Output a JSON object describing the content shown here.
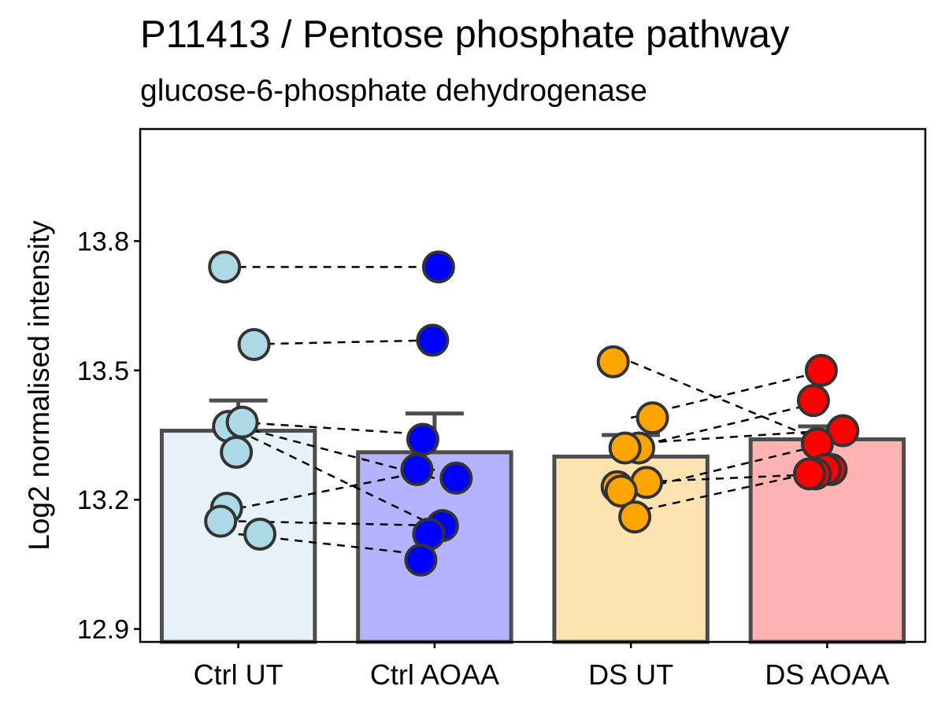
{
  "chart_data": {
    "type": "bar",
    "title": "P11413 / Pentose phosphate pathway",
    "subtitle": "glucose-6-phosphate dehydrogenase",
    "xlabel": "",
    "ylabel": "Log2 normalised intensity",
    "ylim": [
      12.87,
      14.06
    ],
    "yticks": [
      12.9,
      13.2,
      13.5,
      13.8
    ],
    "ytick_labels": [
      "12.9",
      "13.2",
      "13.5",
      "13.8"
    ],
    "grid": false,
    "legend": "none",
    "categories": [
      "Ctrl UT",
      "Ctrl AOAA",
      "DS UT",
      "DS AOAA"
    ],
    "values": [
      13.36,
      13.31,
      13.3,
      13.34
    ],
    "error_upper": [
      13.43,
      13.4,
      13.35,
      13.37
    ],
    "bar_fill_colors": [
      "#e6f2f8",
      "#b3b3ff",
      "#fde3b0",
      "#ffb3b3"
    ],
    "point_colors": [
      "#add8e6",
      "#0000ff",
      "#ffa500",
      "#ff0000"
    ],
    "points": [
      [
        13.74,
        13.56,
        13.37,
        13.38,
        13.31,
        13.18,
        13.15,
        13.12
      ],
      [
        13.74,
        13.57,
        13.34,
        13.27,
        13.25,
        13.14,
        13.12,
        13.06
      ],
      [
        13.52,
        13.39,
        13.32,
        13.32,
        13.23,
        13.24,
        13.22,
        13.16
      ],
      [
        13.5,
        13.43,
        13.36,
        13.33,
        13.27,
        13.27,
        13.26,
        13.26
      ]
    ],
    "paired_lines": [
      {
        "from": [
          0,
          13.74
        ],
        "to": [
          1,
          13.74
        ]
      },
      {
        "from": [
          0,
          13.56
        ],
        "to": [
          1,
          13.57
        ]
      },
      {
        "from": [
          0,
          13.38
        ],
        "to": [
          1,
          13.35
        ]
      },
      {
        "from": [
          0,
          13.37
        ],
        "to": [
          1,
          13.25
        ]
      },
      {
        "from": [
          0,
          13.36
        ],
        "to": [
          1,
          13.14
        ]
      },
      {
        "from": [
          0,
          13.18
        ],
        "to": [
          1,
          13.27
        ]
      },
      {
        "from": [
          0,
          13.15
        ],
        "to": [
          1,
          13.14
        ]
      },
      {
        "from": [
          0,
          13.12
        ],
        "to": [
          1,
          13.07
        ]
      },
      {
        "from": [
          2,
          13.52
        ],
        "to": [
          3,
          13.33
        ]
      },
      {
        "from": [
          2,
          13.39
        ],
        "to": [
          3,
          13.5
        ]
      },
      {
        "from": [
          2,
          13.33
        ],
        "to": [
          3,
          13.36
        ]
      },
      {
        "from": [
          2,
          13.32
        ],
        "to": [
          3,
          13.43
        ]
      },
      {
        "from": [
          2,
          13.24
        ],
        "to": [
          3,
          13.26
        ]
      },
      {
        "from": [
          2,
          13.22
        ],
        "to": [
          3,
          13.33
        ]
      },
      {
        "from": [
          2,
          13.17
        ],
        "to": [
          3,
          13.27
        ]
      }
    ]
  }
}
